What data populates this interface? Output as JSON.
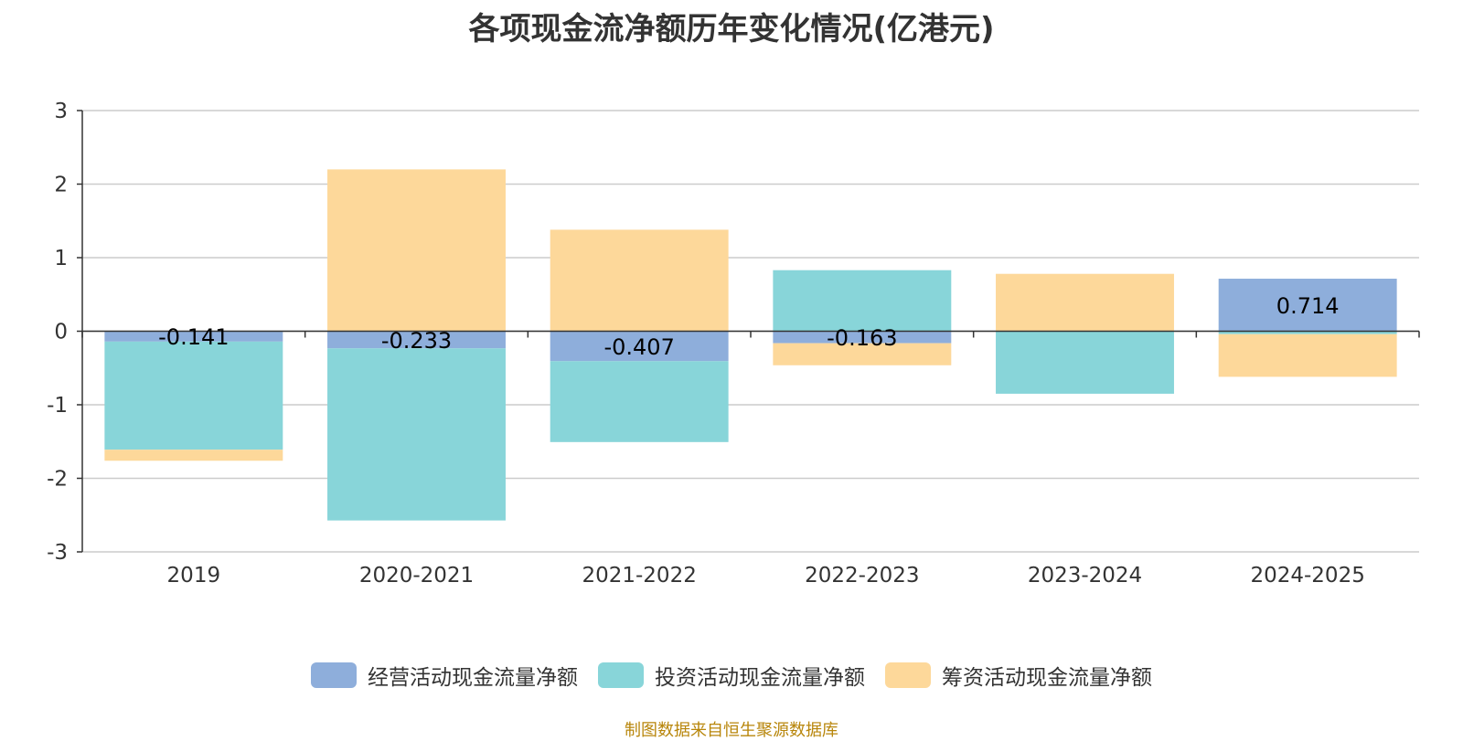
{
  "chart_data": {
    "type": "bar",
    "stacked": true,
    "title": "各项现金流净额历年变化情况(亿港元)",
    "categories": [
      "2019",
      "2020-2021",
      "2021-2022",
      "2022-2023",
      "2023-2024",
      "2024-2025"
    ],
    "series": [
      {
        "name": "经营活动现金流量净额",
        "color": "#8eaedb",
        "values": [
          -0.141,
          -0.233,
          -0.407,
          -0.163,
          0.0,
          0.714
        ]
      },
      {
        "name": "投资活动现金流量净额",
        "color": "#88d5d9",
        "values": [
          -1.47,
          -2.34,
          -1.1,
          0.83,
          -0.85,
          -0.04
        ]
      },
      {
        "name": "筹资活动现金流量净额",
        "color": "#fdd89a",
        "values": [
          -0.15,
          2.2,
          1.38,
          -0.3,
          0.78,
          -0.58
        ]
      }
    ],
    "data_labels": [
      "-0.141",
      "-0.233",
      "-0.407",
      "-0.163",
      "",
      "0.714"
    ],
    "y_ticks": [
      "3",
      "2",
      "1",
      "0",
      "-1",
      "-2",
      "-3"
    ],
    "ylim": [
      -3,
      3
    ],
    "grid": true,
    "legend_position": "bottom"
  },
  "source_note": "制图数据来自恒生聚源数据库"
}
